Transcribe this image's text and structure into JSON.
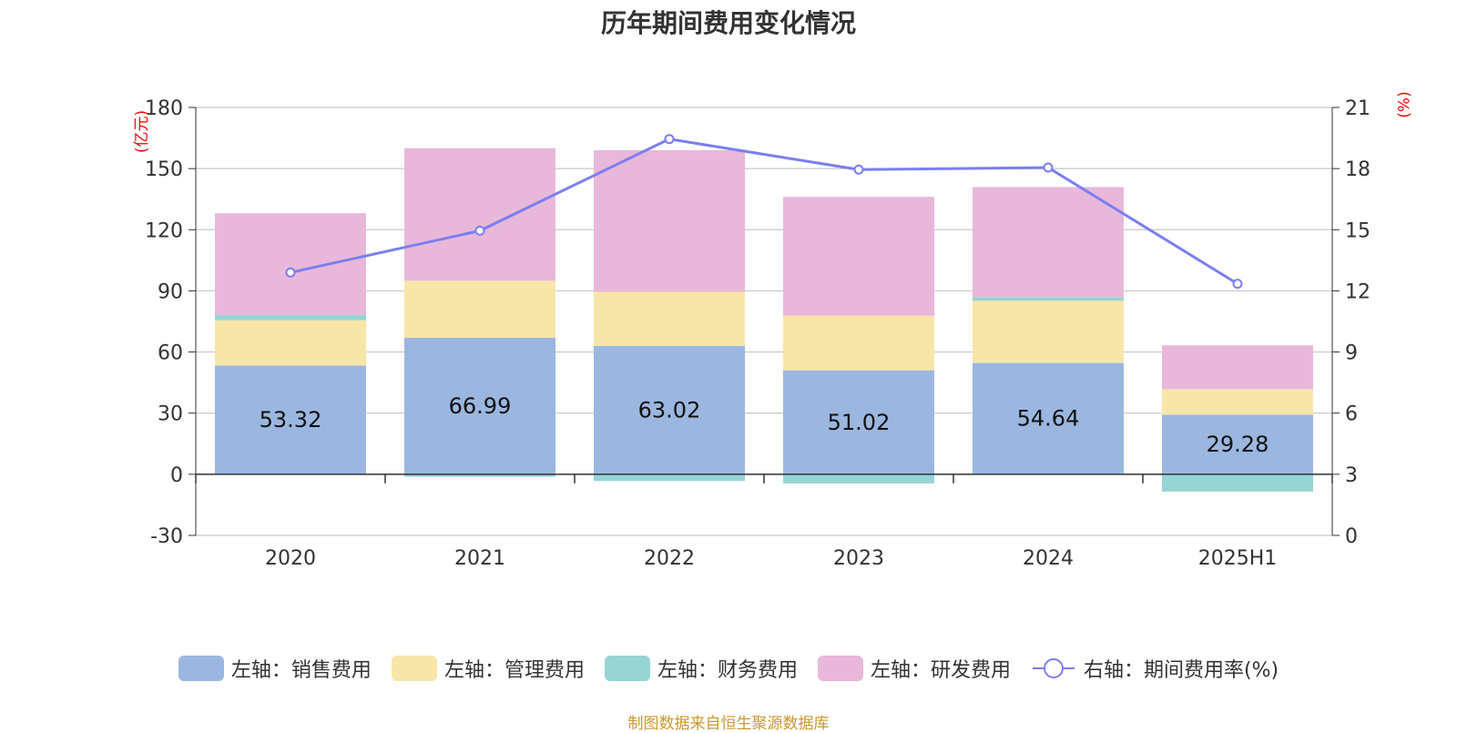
{
  "chart_data": {
    "type": "bar",
    "title": "历年期间费用变化情况",
    "categories": [
      "2020",
      "2021",
      "2022",
      "2023",
      "2024",
      "2025H1"
    ],
    "left_axis": {
      "unit": "(亿元)",
      "ylim": [
        -30,
        180
      ],
      "ticks": [
        -30,
        0,
        30,
        60,
        90,
        120,
        150,
        180
      ]
    },
    "right_axis": {
      "unit": "(%)",
      "ylim": [
        0,
        21
      ],
      "ticks": [
        0,
        3,
        6,
        9,
        12,
        15,
        18,
        21
      ]
    },
    "series": [
      {
        "name": "左轴：销售费用",
        "axis": "left",
        "type": "bar",
        "color": "#9bb7e0",
        "values": [
          53.32,
          66.99,
          63.02,
          51.02,
          54.64,
          29.28
        ],
        "labels": [
          "53.32",
          "66.99",
          "63.02",
          "51.02",
          "54.64",
          "29.28"
        ]
      },
      {
        "name": "左轴：管理费用",
        "axis": "left",
        "type": "bar",
        "color": "#f8e6a8",
        "values": [
          22.3,
          28.0,
          26.5,
          26.8,
          30.5,
          12.5
        ]
      },
      {
        "name": "左轴：财务费用",
        "axis": "left",
        "type": "bar",
        "color": "#97d4d4",
        "values": [
          2.5,
          -1.2,
          -3.3,
          -4.5,
          1.8,
          -8.5
        ]
      },
      {
        "name": "左轴：研发费用",
        "axis": "left",
        "type": "bar",
        "color": "#e8b8da",
        "values": [
          50.0,
          65.0,
          69.5,
          58.3,
          54.0,
          21.5
        ]
      },
      {
        "name": "右轴：期间费用率(%)",
        "axis": "right",
        "type": "line",
        "color": "#7b7ef0",
        "values": [
          12.9,
          14.95,
          19.45,
          17.95,
          18.05,
          12.35
        ]
      }
    ],
    "grid": true,
    "legend_position": "bottom"
  },
  "source": "制图数据来自恒生聚源数据库"
}
